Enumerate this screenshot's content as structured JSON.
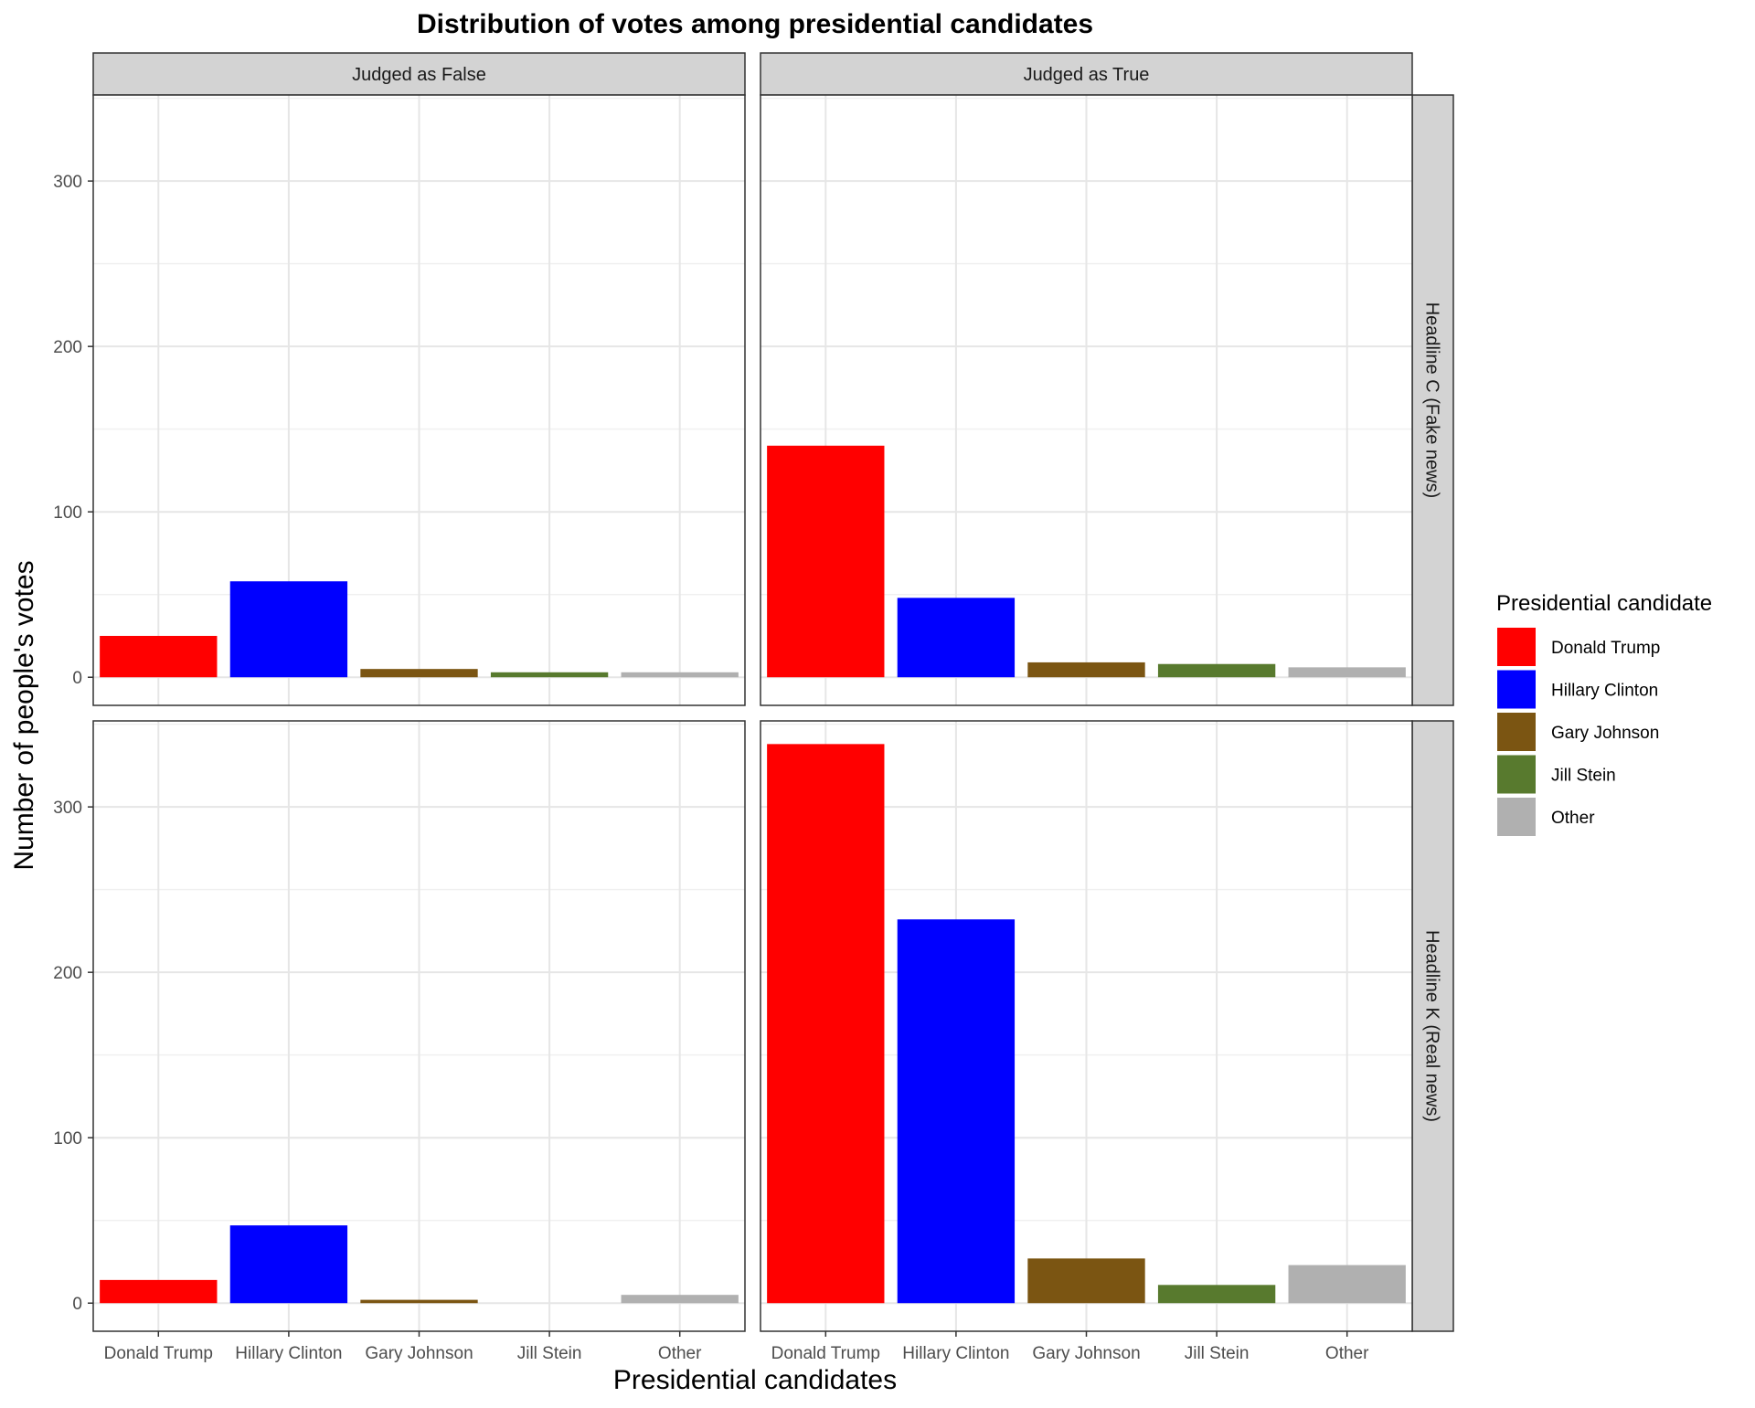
{
  "chart_data": {
    "type": "bar",
    "title": "Distribution of votes among presidential candidates",
    "xlabel": "Presidential candidates",
    "ylabel": "Number of people's votes",
    "ylim": [
      -17,
      352
    ],
    "yticks": [
      0,
      100,
      200,
      300
    ],
    "grid": true,
    "legend_position": "right",
    "categories": [
      "Donald Trump",
      "Hillary Clinton",
      "Gary Johnson",
      "Jill Stein",
      "Other"
    ],
    "column_facets": [
      "Judged as False",
      "Judged as True"
    ],
    "row_facets": [
      "Headline C (Fake news)",
      "Headline K (Real news)"
    ],
    "legend": {
      "title": "Presidential candidate",
      "entries": [
        {
          "label": "Donald Trump",
          "color": "#ff0000"
        },
        {
          "label": "Hillary Clinton",
          "color": "#0000ff"
        },
        {
          "label": "Gary Johnson",
          "color": "#7b5512"
        },
        {
          "label": "Jill Stein",
          "color": "#587a2e"
        },
        {
          "label": "Other",
          "color": "#b0b0b0"
        }
      ]
    },
    "panels": [
      {
        "row": "Headline C (Fake news)",
        "col": "Judged as False",
        "values": [
          25,
          58,
          5,
          3,
          3
        ]
      },
      {
        "row": "Headline C (Fake news)",
        "col": "Judged as True",
        "values": [
          140,
          48,
          9,
          8,
          6
        ]
      },
      {
        "row": "Headline K (Real news)",
        "col": "Judged as False",
        "values": [
          14,
          47,
          2,
          0,
          5
        ]
      },
      {
        "row": "Headline K (Real news)",
        "col": "Judged as True",
        "values": [
          338,
          232,
          27,
          11,
          23
        ]
      }
    ]
  }
}
